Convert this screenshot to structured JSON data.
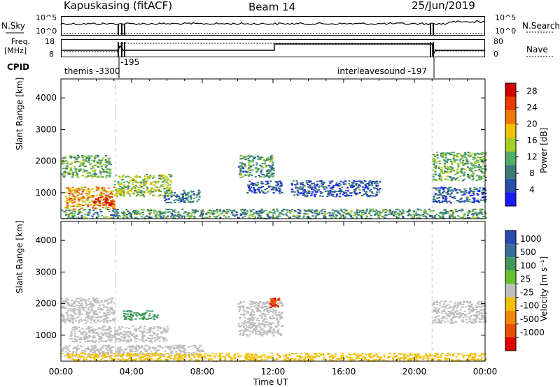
{
  "header": {
    "station": "Kapuskasing (fitACF)",
    "beam": "Beam 14",
    "date": "25/Jun/2019"
  },
  "panels": {
    "nsky": {
      "label": "N.Sky",
      "left_ticks": [
        "10^5",
        "10^0"
      ],
      "right_ticks": [
        "10^5",
        "10^0"
      ],
      "right_label": "N.Search"
    },
    "freq": {
      "label_line1": "Freq.",
      "label_line2": "[MHz]",
      "left_ticks": [
        "18",
        "8"
      ],
      "right_ticks": [
        "80",
        "0"
      ],
      "right_label": "Nave"
    },
    "cpid": {
      "label": "CPID",
      "program_1": "themis -3300",
      "program_2": "-195",
      "program_3": "interleavesound -197"
    }
  },
  "colors": {
    "power_scale": [
      "#1a1aff",
      "#2a4fa8",
      "#3b7a78",
      "#4fae63",
      "#a8cc22",
      "#f2c100",
      "#f07800",
      "#e93a00",
      "#d10000"
    ],
    "velocity_scale": [
      "#2a4ab0",
      "#3a6e9a",
      "#3d9a5a",
      "#66c02a",
      "#bdbdbd",
      "#f2c000",
      "#f08800",
      "#e85000",
      "#e00000"
    ],
    "ground_scatter": "#bdbdbd"
  },
  "chart_data": [
    {
      "type": "heatmap",
      "title": "Power",
      "xlabel": "Time UT",
      "ylabel": "Slant Range [km]",
      "x_ticks": [
        "00:00",
        "04:00",
        "08:00",
        "12:00",
        "16:00",
        "20:00",
        "00:00"
      ],
      "xlim_hours": [
        0,
        24
      ],
      "ylim": [
        180,
        4600
      ],
      "y_ticks": [
        1000,
        2000,
        3000,
        4000
      ],
      "colorbar": {
        "label": "Power [dB]",
        "ticks": [
          4,
          8,
          12,
          16,
          20,
          24,
          28
        ],
        "range": [
          0,
          30
        ]
      },
      "regions": [
        {
          "t0": 0.0,
          "t1": 2.8,
          "r0": 1500,
          "r1": 2200,
          "level": 12
        },
        {
          "t0": 0.2,
          "t1": 3.0,
          "r0": 500,
          "r1": 1200,
          "level": 20
        },
        {
          "t0": 1.8,
          "t1": 3.0,
          "r0": 600,
          "r1": 900,
          "level": 28
        },
        {
          "t0": 3.0,
          "t1": 6.2,
          "r0": 900,
          "r1": 1600,
          "level": 14
        },
        {
          "t0": 5.8,
          "t1": 7.8,
          "r0": 700,
          "r1": 1100,
          "level": 8
        },
        {
          "t0": 10.0,
          "t1": 12.0,
          "r0": 1500,
          "r1": 2200,
          "level": 10
        },
        {
          "t0": 10.5,
          "t1": 12.5,
          "r0": 1000,
          "r1": 1400,
          "level": 6
        },
        {
          "t0": 13.0,
          "t1": 18.0,
          "r0": 900,
          "r1": 1400,
          "level": 6
        },
        {
          "t0": 21.0,
          "t1": 24.0,
          "r0": 1400,
          "r1": 2300,
          "level": 12
        },
        {
          "t0": 21.0,
          "t1": 24.0,
          "r0": 700,
          "r1": 1200,
          "level": 6
        },
        {
          "t0": 0.0,
          "t1": 24.0,
          "r0": 200,
          "r1": 500,
          "level": 10
        }
      ]
    },
    {
      "type": "heatmap",
      "title": "Velocity",
      "xlabel": "Time UT",
      "ylabel": "Slant Range [km]",
      "x_ticks": [
        "00:00",
        "04:00",
        "08:00",
        "12:00",
        "16:00",
        "20:00",
        "00:00"
      ],
      "xlim_hours": [
        0,
        24
      ],
      "ylim": [
        180,
        4600
      ],
      "y_ticks": [
        1000,
        2000,
        3000,
        4000
      ],
      "colorbar": {
        "label": "Velocity [m s⁻¹]",
        "ticks": [
          "1000",
          "500",
          "100",
          "25",
          "-25",
          "-100",
          "-500",
          "-1000"
        ]
      },
      "regions": [
        {
          "t0": 0.0,
          "t1": 3.0,
          "r0": 1400,
          "r1": 2200,
          "kind": "ground"
        },
        {
          "t0": 0.5,
          "t1": 6.0,
          "r0": 800,
          "r1": 1300,
          "kind": "ground"
        },
        {
          "t0": 0.0,
          "t1": 8.0,
          "r0": 350,
          "r1": 700,
          "kind": "ground"
        },
        {
          "t0": 3.5,
          "t1": 5.5,
          "r0": 1500,
          "r1": 1800,
          "velocity": 200
        },
        {
          "t0": 10.0,
          "t1": 12.5,
          "r0": 1000,
          "r1": 2100,
          "kind": "ground"
        },
        {
          "t0": 11.8,
          "t1": 12.3,
          "r0": 1900,
          "r1": 2200,
          "velocity": -800
        },
        {
          "t0": 21.0,
          "t1": 24.0,
          "r0": 1400,
          "r1": 2100,
          "kind": "ground"
        },
        {
          "t0": 0.0,
          "t1": 24.0,
          "r0": 200,
          "r1": 450,
          "velocity": -50
        }
      ]
    }
  ]
}
